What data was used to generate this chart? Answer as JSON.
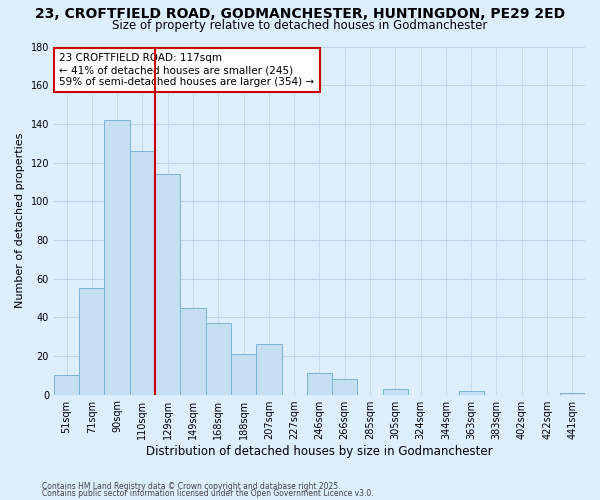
{
  "title": "23, CROFTFIELD ROAD, GODMANCHESTER, HUNTINGDON, PE29 2ED",
  "subtitle": "Size of property relative to detached houses in Godmanchester",
  "xlabel": "Distribution of detached houses by size in Godmanchester",
  "ylabel": "Number of detached properties",
  "categories": [
    "51sqm",
    "71sqm",
    "90sqm",
    "110sqm",
    "129sqm",
    "149sqm",
    "168sqm",
    "188sqm",
    "207sqm",
    "227sqm",
    "246sqm",
    "266sqm",
    "285sqm",
    "305sqm",
    "324sqm",
    "344sqm",
    "363sqm",
    "383sqm",
    "402sqm",
    "422sqm",
    "441sqm"
  ],
  "values": [
    10,
    55,
    142,
    126,
    114,
    45,
    37,
    21,
    26,
    0,
    11,
    8,
    0,
    3,
    0,
    0,
    2,
    0,
    0,
    0,
    1
  ],
  "bar_color": "#c5dff0",
  "bar_edge_color": "#7ab4d4",
  "vline_x_index": 3.5,
  "vline_color": "#cc0000",
  "annotation_text": "23 CROFTFIELD ROAD: 117sqm\n← 41% of detached houses are smaller (245)\n59% of semi-detached houses are larger (354) →",
  "ylim": [
    0,
    180
  ],
  "yticks": [
    0,
    20,
    40,
    60,
    80,
    100,
    120,
    140,
    160,
    180
  ],
  "bg_color": "#ddeeff",
  "plot_bg_color": "#ddeeff",
  "grid_color": "#c0d4e8",
  "footer1": "Contains HM Land Registry data © Crown copyright and database right 2025.",
  "footer2": "Contains public sector information licensed under the Open Government Licence v3.0.",
  "title_fontsize": 10,
  "subtitle_fontsize": 8.5,
  "xlabel_fontsize": 8.5,
  "ylabel_fontsize": 8,
  "tick_fontsize": 7,
  "annotation_fontsize": 7.5,
  "footer_fontsize": 5.5
}
